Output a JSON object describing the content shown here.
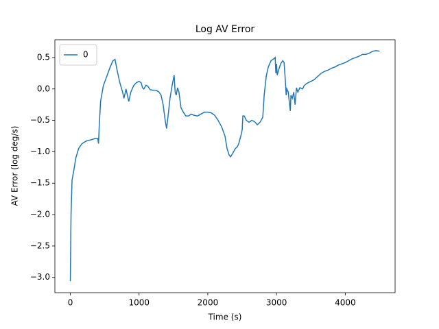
{
  "chart_data": {
    "type": "line",
    "title": "Log AV Error",
    "xlabel": "Time (s)",
    "ylabel": "AV Error (log deg/s)",
    "x": [
      0,
      10,
      25,
      50,
      80,
      120,
      170,
      230,
      300,
      360,
      400,
      410,
      420,
      440,
      480,
      530,
      580,
      620,
      650,
      680,
      720,
      760,
      780,
      800,
      810,
      830,
      850,
      880,
      920,
      960,
      1000,
      1030,
      1050,
      1070,
      1100,
      1130,
      1160,
      1200,
      1250,
      1290,
      1320,
      1350,
      1380,
      1400,
      1420,
      1450,
      1480,
      1510,
      1525,
      1540,
      1560,
      1580,
      1610,
      1650,
      1680,
      1720,
      1760,
      1800,
      1850,
      1900,
      1950,
      2000,
      2050,
      2100,
      2150,
      2200,
      2250,
      2280,
      2310,
      2330,
      2360,
      2400,
      2430,
      2450,
      2480,
      2500,
      2510,
      2530,
      2560,
      2600,
      2640,
      2680,
      2720,
      2760,
      2800,
      2820,
      2850,
      2880,
      2920,
      2960,
      2980,
      2990,
      3000,
      3010,
      3030,
      3060,
      3090,
      3110,
      3130,
      3140,
      3150,
      3170,
      3200,
      3210,
      3230,
      3250,
      3270,
      3290,
      3310,
      3340,
      3380,
      3400,
      3430,
      3460,
      3500,
      3550,
      3600,
      3650,
      3700,
      3750,
      3800,
      3850,
      3900,
      3950,
      4000,
      4050,
      4100,
      4150,
      4200,
      4250,
      4300,
      4350,
      4400,
      4450,
      4500
    ],
    "series": [
      {
        "name": "0",
        "color": "#1f77b4",
        "values": [
          -3.06,
          -2.0,
          -1.45,
          -1.3,
          -1.1,
          -0.95,
          -0.87,
          -0.83,
          -0.81,
          -0.79,
          -0.79,
          -0.87,
          -0.6,
          -0.2,
          0.05,
          0.2,
          0.35,
          0.45,
          0.47,
          0.3,
          0.1,
          -0.05,
          -0.15,
          -0.05,
          0.0,
          -0.1,
          -0.2,
          -0.05,
          0.05,
          0.1,
          0.12,
          0.1,
          0.02,
          0.0,
          0.06,
          0.04,
          -0.01,
          -0.02,
          -0.02,
          -0.05,
          -0.1,
          -0.25,
          -0.5,
          -0.63,
          -0.45,
          -0.15,
          0.05,
          0.22,
          -0.05,
          -0.1,
          0.02,
          -0.05,
          -0.3,
          -0.38,
          -0.43,
          -0.43,
          -0.4,
          -0.42,
          -0.43,
          -0.4,
          -0.37,
          -0.37,
          -0.38,
          -0.42,
          -0.5,
          -0.6,
          -0.75,
          -0.95,
          -1.05,
          -1.08,
          -1.03,
          -0.95,
          -0.92,
          -0.87,
          -0.75,
          -0.65,
          -0.43,
          -0.43,
          -0.5,
          -0.53,
          -0.5,
          -0.52,
          -0.57,
          -0.53,
          -0.45,
          -0.1,
          0.2,
          0.35,
          0.45,
          0.48,
          0.5,
          0.25,
          0.4,
          0.22,
          0.3,
          0.4,
          0.45,
          0.42,
          0.1,
          -0.1,
          0.0,
          -0.05,
          -0.35,
          -0.1,
          -0.15,
          -0.05,
          -0.25,
          0.02,
          -0.05,
          0.02,
          0.0,
          0.05,
          0.08,
          0.1,
          0.12,
          0.15,
          0.2,
          0.25,
          0.28,
          0.3,
          0.33,
          0.35,
          0.38,
          0.4,
          0.42,
          0.45,
          0.48,
          0.5,
          0.52,
          0.55,
          0.55,
          0.57,
          0.6,
          0.61,
          0.6
        ]
      }
    ],
    "xlim": [
      -225,
      4725
    ],
    "xticks": [
      0,
      1000,
      2000,
      3000,
      4000
    ],
    "ylim": [
      -3.243,
      0.783
    ],
    "yticks": [
      {
        "value": -3.0,
        "label": "−3.0"
      },
      {
        "value": -2.5,
        "label": "−2.5"
      },
      {
        "value": -2.0,
        "label": "−2.0"
      },
      {
        "value": -1.5,
        "label": "−1.5"
      },
      {
        "value": -1.0,
        "label": "−1.0"
      },
      {
        "value": -0.5,
        "label": "−0.5"
      },
      {
        "value": 0.0,
        "label": "0.0"
      },
      {
        "value": 0.5,
        "label": "0.5"
      }
    ],
    "legend": "upper left"
  }
}
